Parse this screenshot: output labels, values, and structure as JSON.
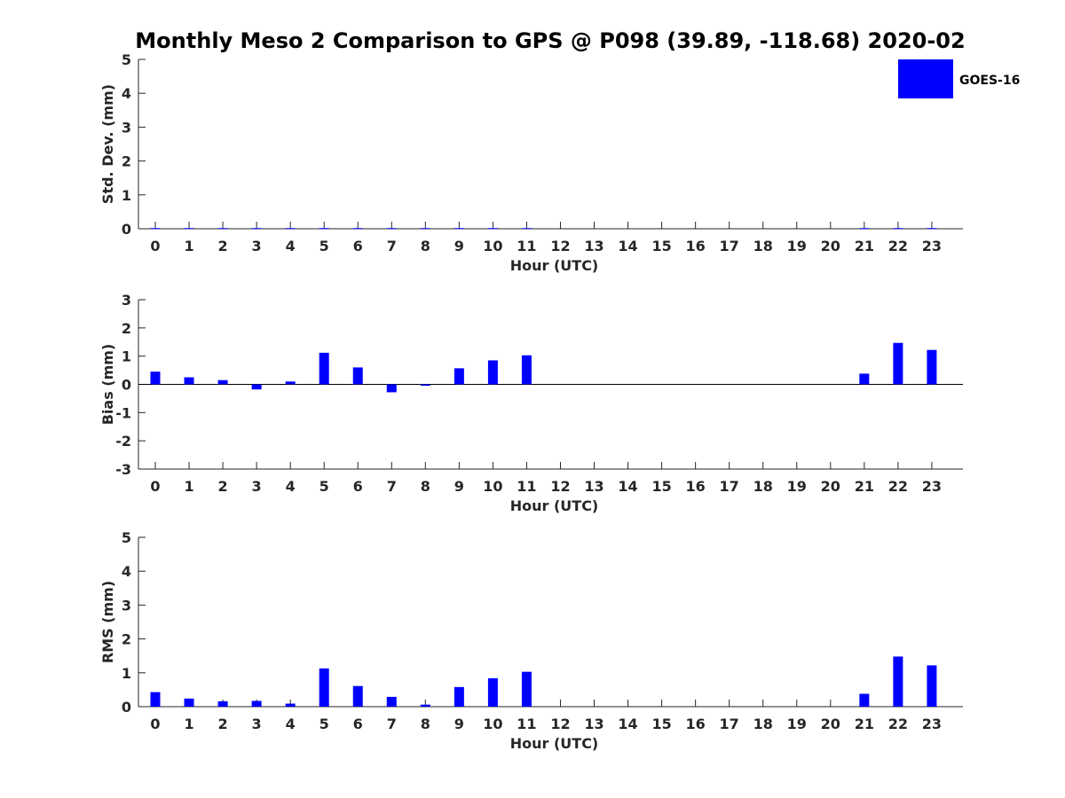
{
  "figure": {
    "title": "Monthly Meso 2 Comparison to GPS @ P098 (39.89, -118.68) 2020-02",
    "legend_label": "GOES-16",
    "bar_color": "#0000ff"
  },
  "chart_data": [
    {
      "type": "bar",
      "id": "std",
      "title": "",
      "xlabel": "Hour (UTC)",
      "ylabel": "Std. Dev. (mm)",
      "ylim": [
        0,
        5
      ],
      "yticks": [
        0,
        1,
        2,
        3,
        4,
        5
      ],
      "categories": [
        0,
        1,
        2,
        3,
        4,
        5,
        6,
        7,
        8,
        9,
        10,
        11,
        12,
        13,
        14,
        15,
        16,
        17,
        18,
        19,
        20,
        21,
        22,
        23
      ],
      "grid": false,
      "legend": "top-right",
      "series": [
        {
          "name": "GOES-16",
          "values": [
            0.02,
            0.02,
            0.02,
            0.02,
            0.02,
            0.02,
            0.02,
            0.02,
            0.02,
            0.02,
            0.02,
            0.02,
            0,
            0,
            0,
            0,
            0,
            0,
            0,
            0,
            0,
            0.02,
            0.02,
            0.02
          ]
        }
      ]
    },
    {
      "type": "bar",
      "id": "bias",
      "title": "",
      "xlabel": "Hour (UTC)",
      "ylabel": "Bias (mm)",
      "ylim": [
        -3,
        3
      ],
      "yticks": [
        -3,
        -2,
        -1,
        0,
        1,
        2,
        3
      ],
      "categories": [
        0,
        1,
        2,
        3,
        4,
        5,
        6,
        7,
        8,
        9,
        10,
        11,
        12,
        13,
        14,
        15,
        16,
        17,
        18,
        19,
        20,
        21,
        22,
        23
      ],
      "grid": false,
      "series": [
        {
          "name": "GOES-16",
          "values": [
            0.45,
            0.25,
            0.15,
            -0.18,
            0.1,
            1.12,
            0.6,
            -0.28,
            -0.05,
            0.57,
            0.85,
            1.03,
            0,
            0,
            0,
            0,
            0,
            0,
            0,
            0,
            0,
            0.38,
            1.47,
            1.22
          ]
        }
      ]
    },
    {
      "type": "bar",
      "id": "rms",
      "title": "",
      "xlabel": "Hour (UTC)",
      "ylabel": "RMS (mm)",
      "ylim": [
        0,
        5
      ],
      "yticks": [
        0,
        1,
        2,
        3,
        4,
        5
      ],
      "categories": [
        0,
        1,
        2,
        3,
        4,
        5,
        6,
        7,
        8,
        9,
        10,
        11,
        12,
        13,
        14,
        15,
        16,
        17,
        18,
        19,
        20,
        21,
        22,
        23
      ],
      "grid": false,
      "series": [
        {
          "name": "GOES-16",
          "values": [
            0.43,
            0.24,
            0.16,
            0.17,
            0.09,
            1.13,
            0.61,
            0.29,
            0.06,
            0.58,
            0.84,
            1.03,
            0,
            0,
            0,
            0,
            0,
            0,
            0,
            0,
            0,
            0.38,
            1.48,
            1.22
          ]
        }
      ]
    }
  ]
}
